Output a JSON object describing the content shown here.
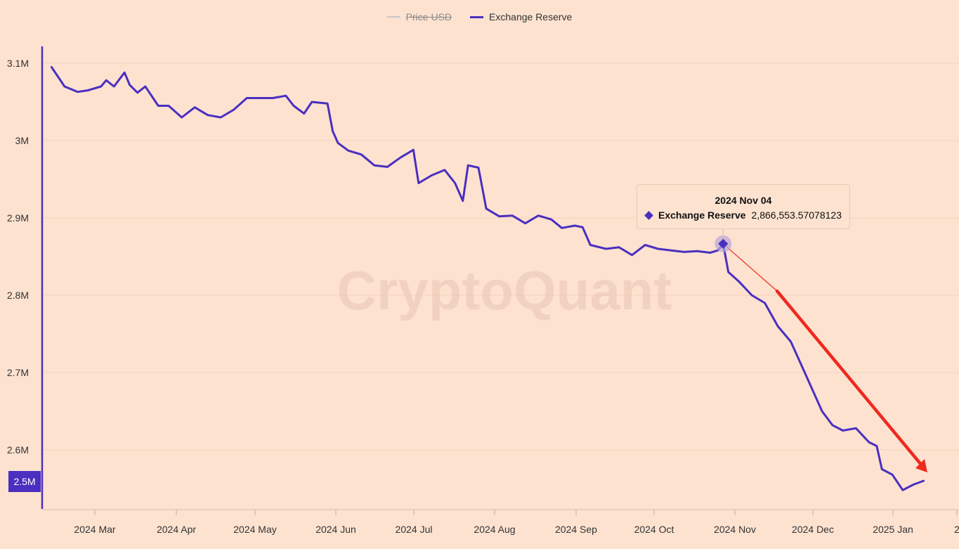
{
  "legend": {
    "price_label": "Price USD",
    "reserve_label": "Exchange Reserve"
  },
  "tooltip": {
    "date": "2024 Nov 04",
    "series": "Exchange Reserve",
    "value": "2,866,553.57078123"
  },
  "watermark": "CryptoQuant",
  "y_badge": "2.5M",
  "colors": {
    "background": "#fde2d0",
    "series": "#4a2fc0",
    "price_legend": "#c8c8c8",
    "trend_arrow": "#f0281e",
    "grid": "#f6d3be"
  },
  "chart_data": {
    "type": "line",
    "series": [
      {
        "name": "Exchange Reserve",
        "points": [
          [
            "2024-02-20",
            3095000
          ],
          [
            "2024-02-25",
            3070000
          ],
          [
            "2024-03-01",
            3063000
          ],
          [
            "2024-03-05",
            3065000
          ],
          [
            "2024-03-10",
            3070000
          ],
          [
            "2024-03-12",
            3078000
          ],
          [
            "2024-03-15",
            3070000
          ],
          [
            "2024-03-19",
            3088000
          ],
          [
            "2024-03-21",
            3072000
          ],
          [
            "2024-03-24",
            3062000
          ],
          [
            "2024-03-27",
            3070000
          ],
          [
            "2024-04-01",
            3045000
          ],
          [
            "2024-04-05",
            3045000
          ],
          [
            "2024-04-10",
            3030000
          ],
          [
            "2024-04-15",
            3043000
          ],
          [
            "2024-04-20",
            3033000
          ],
          [
            "2024-04-25",
            3030000
          ],
          [
            "2024-04-30",
            3040000
          ],
          [
            "2024-05-05",
            3055000
          ],
          [
            "2024-05-10",
            3055000
          ],
          [
            "2024-05-15",
            3055000
          ],
          [
            "2024-05-20",
            3058000
          ],
          [
            "2024-05-23",
            3045000
          ],
          [
            "2024-05-27",
            3035000
          ],
          [
            "2024-05-30",
            3050000
          ],
          [
            "2024-06-05",
            3048000
          ],
          [
            "2024-06-07",
            3012000
          ],
          [
            "2024-06-09",
            2997000
          ],
          [
            "2024-06-13",
            2987000
          ],
          [
            "2024-06-18",
            2982000
          ],
          [
            "2024-06-23",
            2968000
          ],
          [
            "2024-06-28",
            2966000
          ],
          [
            "2024-07-03",
            2978000
          ],
          [
            "2024-07-08",
            2988000
          ],
          [
            "2024-07-10",
            2945000
          ],
          [
            "2024-07-15",
            2955000
          ],
          [
            "2024-07-20",
            2962000
          ],
          [
            "2024-07-24",
            2945000
          ],
          [
            "2024-07-27",
            2922000
          ],
          [
            "2024-07-29",
            2968000
          ],
          [
            "2024-08-02",
            2965000
          ],
          [
            "2024-08-05",
            2912000
          ],
          [
            "2024-08-10",
            2902000
          ],
          [
            "2024-08-15",
            2903000
          ],
          [
            "2024-08-20",
            2893000
          ],
          [
            "2024-08-25",
            2903000
          ],
          [
            "2024-08-30",
            2898000
          ],
          [
            "2024-09-03",
            2887000
          ],
          [
            "2024-09-08",
            2890000
          ],
          [
            "2024-09-11",
            2888000
          ],
          [
            "2024-09-14",
            2865000
          ],
          [
            "2024-09-20",
            2860000
          ],
          [
            "2024-09-25",
            2862000
          ],
          [
            "2024-09-30",
            2852000
          ],
          [
            "2024-10-05",
            2865000
          ],
          [
            "2024-10-10",
            2860000
          ],
          [
            "2024-10-15",
            2858000
          ],
          [
            "2024-10-20",
            2856000
          ],
          [
            "2024-10-25",
            2857000
          ],
          [
            "2024-10-30",
            2855000
          ],
          [
            "2024-11-02",
            2858000
          ],
          [
            "2024-11-04",
            2866554
          ],
          [
            "2024-11-06",
            2830000
          ],
          [
            "2024-11-10",
            2818000
          ],
          [
            "2024-11-15",
            2800000
          ],
          [
            "2024-11-20",
            2790000
          ],
          [
            "2024-11-25",
            2760000
          ],
          [
            "2024-11-30",
            2740000
          ],
          [
            "2024-12-04",
            2710000
          ],
          [
            "2024-12-08",
            2680000
          ],
          [
            "2024-12-12",
            2650000
          ],
          [
            "2024-12-16",
            2632000
          ],
          [
            "2024-12-20",
            2625000
          ],
          [
            "2024-12-25",
            2628000
          ],
          [
            "2024-12-30",
            2610000
          ],
          [
            "2025-01-02",
            2605000
          ],
          [
            "2025-01-04",
            2575000
          ],
          [
            "2025-01-08",
            2568000
          ],
          [
            "2025-01-12",
            2548000
          ],
          [
            "2025-01-16",
            2555000
          ],
          [
            "2025-01-20",
            2560000
          ]
        ]
      }
    ],
    "y_ticks": [
      "3.1M",
      "3M",
      "2.9M",
      "2.8M",
      "2.7M",
      "2.6M"
    ],
    "x_ticks": [
      "2024 Mar",
      "2024 Apr",
      "2024 May",
      "2024 Jun",
      "2024 Jul",
      "2024 Aug",
      "2024 Sep",
      "2024 Oct",
      "2024 Nov",
      "2024 Dec",
      "2025 Jan",
      "2"
    ],
    "ylim": [
      2500000,
      3100000
    ],
    "xlim": [
      "2024-02-18",
      "2025-01-22"
    ],
    "grid": true,
    "legend_position": "top-center",
    "annotation": "trend arrow from 2024 Nov 04 to 2025 Jan"
  }
}
